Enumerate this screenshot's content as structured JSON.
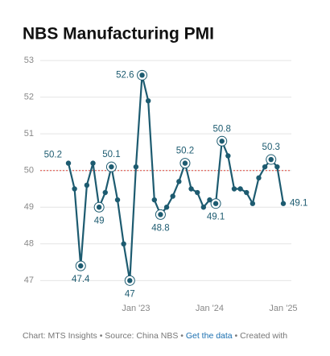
{
  "chart_data": {
    "type": "line",
    "title": "NBS Manufacturing PMI",
    "categories": [
      null,
      null,
      null,
      null,
      null,
      null,
      null,
      null,
      null,
      null,
      null,
      "Jan '23",
      null,
      null,
      null,
      null,
      null,
      null,
      null,
      null,
      null,
      null,
      null,
      "Jan '24",
      null,
      null,
      null,
      null,
      null,
      null,
      null,
      null,
      null,
      null,
      null,
      "Jan '25"
    ],
    "values": [
      50.2,
      49.5,
      47.4,
      49.6,
      50.2,
      49,
      49.4,
      50.1,
      49.2,
      48,
      47,
      50.1,
      52.6,
      51.9,
      49.2,
      48.8,
      49,
      49.3,
      49.7,
      50.2,
      49.5,
      49.4,
      49,
      49.2,
      49.1,
      50.8,
      50.4,
      49.5,
      49.5,
      49.4,
      49.1,
      49.8,
      50.1,
      50.3,
      50.1,
      49.1
    ],
    "value_labels": [
      "50.2",
      null,
      "47.4",
      null,
      null,
      "49",
      null,
      "50.1",
      null,
      null,
      "47",
      null,
      "52.6",
      null,
      null,
      "48.8",
      null,
      null,
      null,
      "50.2",
      null,
      null,
      null,
      null,
      "49.1",
      "50.8",
      null,
      null,
      null,
      null,
      null,
      null,
      null,
      "50.3",
      null,
      "49.1"
    ],
    "color": "#1d5b70",
    "reference_line": 50,
    "reference_color": "#e0473c",
    "ylim": [
      46.7,
      53.2
    ],
    "yticks": [
      47,
      48,
      49,
      50,
      51,
      52,
      53
    ],
    "grid": true,
    "footer": {
      "text": "Chart: MTS Insights • Source: China NBS • ",
      "link": "Get the data",
      "tail": " • Created with"
    }
  }
}
